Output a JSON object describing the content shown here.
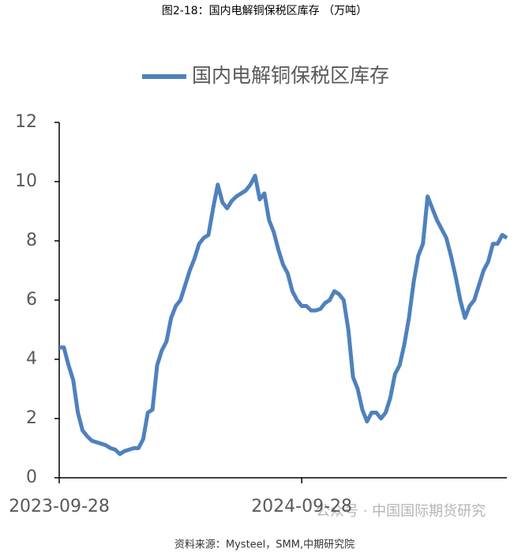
{
  "chart_data": {
    "type": "line",
    "title": "图2-18：国内电解铜保税区库存 （万吨）",
    "source": "资料来源：Mysteel，SMM,中期研究院",
    "watermark": "公众号 · 中国国际期货研究",
    "categories": [
      "2023-09-28",
      null,
      null,
      null,
      null,
      null,
      null,
      null,
      null,
      null,
      null,
      null,
      null,
      null,
      null,
      null,
      null,
      null,
      null,
      null,
      null,
      null,
      null,
      null,
      null,
      null,
      null,
      null,
      null,
      null,
      null,
      null,
      null,
      null,
      null,
      null,
      null,
      null,
      null,
      null,
      null,
      null,
      null,
      null,
      null,
      null,
      null,
      null,
      null,
      null,
      null,
      null,
      "2024-09-28",
      null,
      null,
      null,
      null,
      null,
      null,
      null,
      null,
      null,
      null,
      null,
      null,
      null,
      null,
      null,
      null,
      null,
      null,
      null,
      null,
      null,
      null,
      null,
      null,
      null,
      null,
      null,
      null,
      null,
      null,
      null,
      null,
      null,
      null,
      null,
      null,
      null,
      null,
      null,
      null,
      null,
      null,
      null,
      null
    ],
    "series": [
      {
        "name": "国内电解铜保税区库存",
        "color": "#4f81bd",
        "values": [
          4.4,
          4.4,
          3.8,
          3.3,
          2.2,
          1.6,
          1.4,
          1.25,
          1.2,
          1.15,
          1.1,
          1.0,
          0.95,
          0.8,
          0.9,
          0.95,
          1.0,
          1.0,
          1.3,
          2.2,
          2.3,
          3.8,
          4.3,
          4.6,
          5.4,
          5.8,
          6.0,
          6.5,
          7.0,
          7.4,
          7.9,
          8.1,
          8.2,
          9.1,
          9.9,
          9.3,
          9.1,
          9.35,
          9.5,
          9.6,
          9.7,
          9.9,
          10.2,
          9.4,
          9.6,
          8.7,
          8.3,
          7.7,
          7.2,
          6.9,
          6.3,
          6.0,
          5.8,
          5.8,
          5.65,
          5.65,
          5.7,
          5.9,
          6.0,
          6.3,
          6.2,
          6.0,
          5.0,
          3.4,
          3.0,
          2.3,
          1.9,
          2.2,
          2.2,
          2.0,
          2.2,
          2.7,
          3.5,
          3.8,
          4.5,
          5.4,
          6.6,
          7.5,
          7.9,
          9.5,
          9.1,
          8.7,
          8.4,
          8.1,
          7.5,
          6.8,
          6.0,
          5.4,
          5.8,
          6.0,
          6.5,
          7.0,
          7.3,
          7.9,
          7.9,
          8.2,
          8.1
        ]
      }
    ],
    "ylim": [
      0,
      12
    ],
    "yticks": [
      0,
      2,
      4,
      6,
      8,
      10,
      12
    ],
    "grid": false,
    "legend": "top"
  }
}
